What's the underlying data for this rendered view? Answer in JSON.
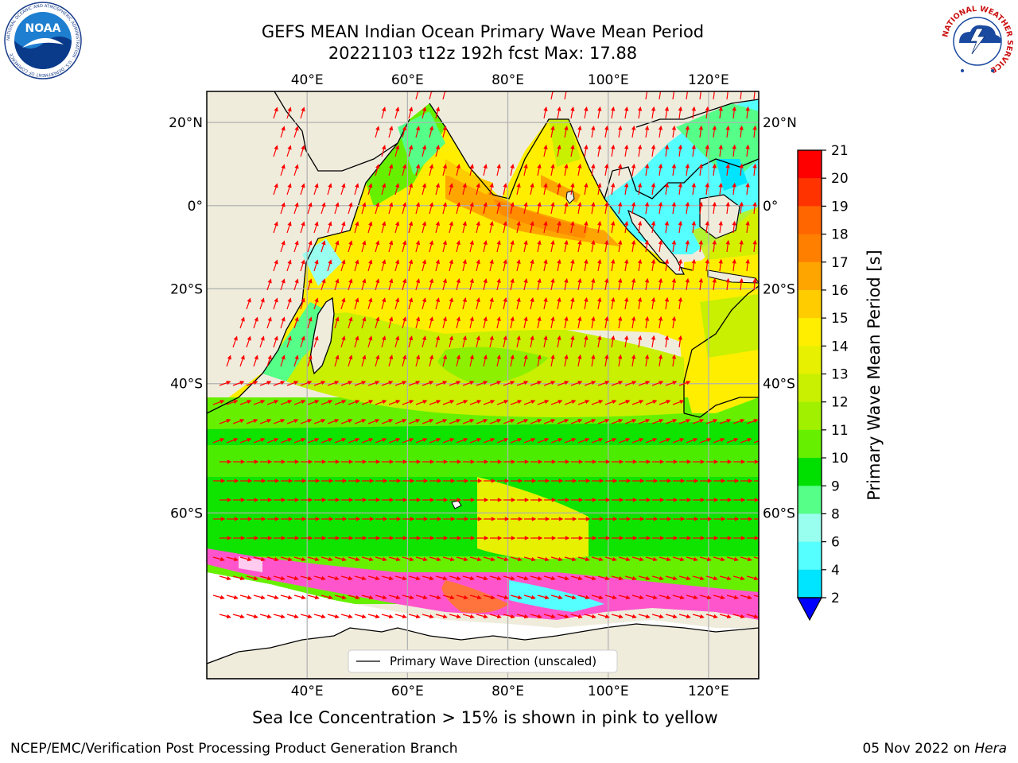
{
  "title": {
    "line1": "GEFS MEAN Indian Ocean Primary Wave Mean Period",
    "line2": "20221103 t12z 192h fcst   Max: 17.88"
  },
  "map": {
    "lon_min": 20,
    "lon_max": 130,
    "lat_min": -75,
    "lat_max": 27,
    "lon_ticks": [
      {
        "value": 40,
        "label": "40°E"
      },
      {
        "value": 60,
        "label": "60°E"
      },
      {
        "value": 80,
        "label": "80°E"
      },
      {
        "value": 100,
        "label": "100°E"
      },
      {
        "value": 120,
        "label": "120°E"
      }
    ],
    "lat_ticks": [
      {
        "value": 20,
        "label": "20°N"
      },
      {
        "value": 0,
        "label": "0°"
      },
      {
        "value": -20,
        "label": "20°S"
      },
      {
        "value": -40,
        "label": "40°S"
      },
      {
        "value": -60,
        "label": "60°S"
      }
    ],
    "grid": true,
    "legend": {
      "label": "Primary Wave Direction (unscaled)",
      "placement": "bottom-center"
    }
  },
  "colorbar": {
    "label": "Primary Wave Mean Period [s]",
    "ticks": [
      "21",
      "20",
      "19",
      "18",
      "17",
      "16",
      "15",
      "14",
      "13",
      "12",
      "11",
      "10",
      "9",
      "8",
      "6",
      "4",
      "2"
    ],
    "colors": [
      "#ff0000",
      "#ff3300",
      "#ff6600",
      "#ff8000",
      "#ffa500",
      "#ffcc00",
      "#ffee00",
      "#e6f000",
      "#c8f000",
      "#a0f000",
      "#66f000",
      "#00e000",
      "#55ff88",
      "#99ffee",
      "#55ffff",
      "#00e5ff",
      "#0088ff"
    ],
    "under_color": "#0000ff"
  },
  "captions": {
    "sea_ice": "Sea Ice Concentration > 15% is shown in pink to yellow",
    "branch": "NCEP/EMC/Verification Post Processing Product Generation Branch",
    "date": "05 Nov 2022 on ",
    "machine": "Hera"
  },
  "logos": {
    "noaa_text": "NOAA",
    "noaa_ring": "NATIONAL OCEANIC AND ATMOSPHERIC ADMINISTRATION · U.S. DEPARTMENT OF COMMERCE",
    "nws_ring": "NATIONAL WEATHER SERVICE"
  },
  "colors": {
    "land": "#efecdc",
    "arrows": "#ff0000",
    "ice_pink": "#ff55cc",
    "ice_white": "#ffffff"
  }
}
